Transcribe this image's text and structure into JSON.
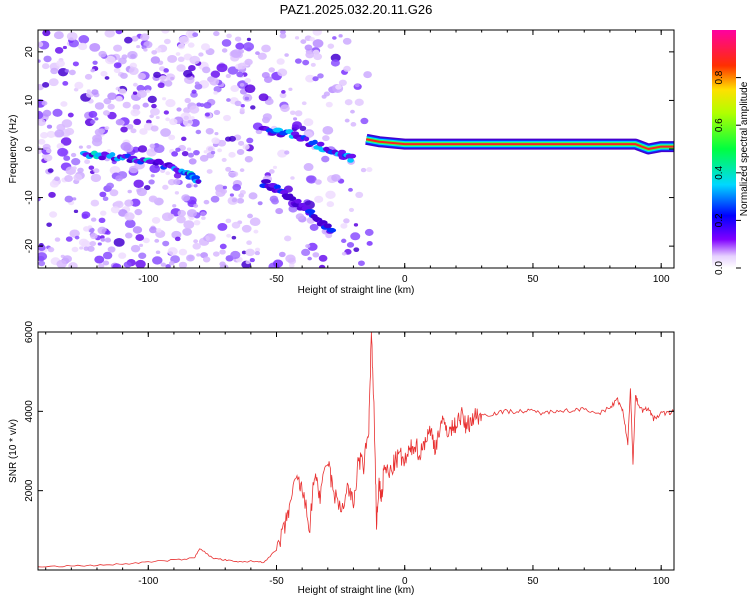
{
  "title": "PAZ1.2025.032.20.11.G26",
  "chart_data": [
    {
      "type": "heatmap",
      "xlabel": "Height of straight line (km)",
      "ylabel": "Frequency (Hz)",
      "xlim": [
        -143,
        105
      ],
      "ylim": [
        -24.5,
        24.5
      ],
      "xticks": [
        -100,
        -50,
        0,
        50,
        100
      ],
      "yticks": [
        -20,
        -10,
        0,
        10,
        20
      ],
      "colorbar": {
        "label": "Normalized spectral amplitude",
        "range": [
          0,
          1
        ],
        "ticks": [
          0.0,
          0.2,
          0.4,
          0.6,
          0.8
        ],
        "tick_labels": [
          "0.0",
          "0.2",
          "0.4",
          "0.6",
          "0.8"
        ],
        "colors": [
          "#ffffff",
          "#8000ff",
          "#0000ff",
          "#00ffff",
          "#00ff00",
          "#ffff00",
          "#ff0000",
          "#ff00a0"
        ]
      },
      "description_points": {
        "main_trace": {
          "x": [
            -15,
            -10,
            0,
            10,
            20,
            30,
            40,
            50,
            60,
            70,
            80,
            90,
            95,
            100,
            105
          ],
          "y": [
            2,
            1.5,
            1,
            1,
            1,
            1,
            1,
            1,
            1,
            1,
            1,
            1,
            0,
            0.5,
            0.5
          ]
        },
        "secondary_trace": {
          "x": [
            -125,
            -115,
            -105,
            -95,
            -85,
            -80
          ],
          "y": [
            -1,
            -1.5,
            -2,
            -3,
            -5,
            -7
          ]
        },
        "upper_branch": {
          "x": [
            -55,
            -45,
            -35,
            -25,
            -20
          ],
          "y": [
            4,
            3,
            1,
            -1,
            -2
          ]
        },
        "lower_branch": {
          "x": [
            -55,
            -47,
            -40,
            -33,
            -28
          ],
          "y": [
            -7,
            -9,
            -12,
            -15,
            -17
          ]
        }
      }
    },
    {
      "type": "line",
      "xlabel": "Height of straight line (km)",
      "ylabel": "SNR (10 * v/v)",
      "xlim": [
        -143,
        105
      ],
      "ylim": [
        0,
        6000
      ],
      "xticks": [
        -100,
        -50,
        0,
        50,
        100
      ],
      "yticks": [
        2000,
        4000,
        6000
      ],
      "series": [
        {
          "color": "#e83030",
          "x": [
            -143,
            -130,
            -120,
            -110,
            -100,
            -90,
            -82,
            -80,
            -75,
            -70,
            -65,
            -60,
            -55,
            -50,
            -47,
            -45,
            -42,
            -40,
            -37,
            -35,
            -33,
            -30,
            -28,
            -25,
            -22,
            -20,
            -18,
            -16,
            -14,
            -13,
            -12,
            -11,
            -10,
            -9,
            -8,
            -6,
            -4,
            -2,
            0,
            2,
            4,
            6,
            8,
            10,
            12,
            14,
            16,
            18,
            20,
            22,
            24,
            26,
            28,
            30,
            35,
            40,
            45,
            50,
            55,
            60,
            65,
            70,
            75,
            80,
            83,
            85,
            87,
            88,
            89,
            90,
            91,
            93,
            95,
            97,
            100,
            103,
            105
          ],
          "y": [
            80,
            100,
            120,
            150,
            200,
            250,
            300,
            550,
            300,
            250,
            200,
            220,
            200,
            500,
            1000,
            1600,
            2300,
            2000,
            1100,
            2500,
            1800,
            2800,
            2000,
            1500,
            2100,
            1600,
            2800,
            2600,
            3600,
            6000,
            4000,
            1200,
            2200,
            1800,
            2600,
            2400,
            2700,
            2900,
            2700,
            3000,
            3200,
            2900,
            3300,
            3500,
            3100,
            3700,
            3600,
            3500,
            3700,
            3900,
            3600,
            3800,
            3900,
            3900,
            3950,
            4000,
            4000,
            4000,
            3950,
            4050,
            4000,
            4100,
            3900,
            4100,
            4300,
            4000,
            3200,
            4600,
            2700,
            4400,
            4200,
            4000,
            4100,
            3800,
            3950,
            3950,
            4000
          ]
        }
      ]
    }
  ]
}
